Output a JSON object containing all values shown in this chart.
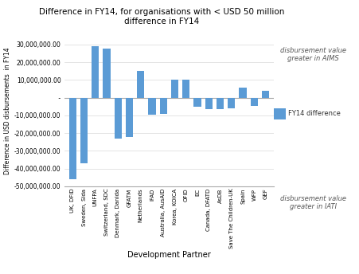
{
  "title": "Difference in FY14, for organisations with < USD 50 million\ndifference in FY14",
  "xlabel": "Development Partner",
  "ylabel": "Difference in USD disbursements  in FY14",
  "categories": [
    "UK, DFID",
    "Sweden, Sida",
    "UNFPA",
    "Switzerland, SDC",
    "Denmark, Danida",
    "GFATM",
    "Netherlands",
    "IFAD",
    "Australia, AusAID",
    "Korea, KOICA",
    "OFID",
    "EC",
    "Canada, DFATD",
    "AsDB",
    "Save The Children-UK",
    "Spain",
    "WFP",
    "GEF"
  ],
  "values": [
    -46000000,
    -37000000,
    29000000,
    27500000,
    -23000000,
    -22000000,
    15000000,
    -9500000,
    -9000000,
    10000000,
    10000000,
    -5000000,
    -6500000,
    -6500000,
    -6000000,
    5500000,
    -4500000,
    4000000
  ],
  "bar_color": "#5b9bd5",
  "legend_label": "FY14 difference",
  "annotation_top": "disbursement value\ngreater in AIMS",
  "annotation_bottom": "disbursement value\ngreater in IATI",
  "ylim": [
    -50000000,
    35000000
  ],
  "yticks": [
    -50000000,
    -40000000,
    -30000000,
    -20000000,
    -10000000,
    0,
    10000000,
    20000000,
    30000000
  ],
  "background_color": "#ffffff",
  "grid_color": "#d9d9d9"
}
